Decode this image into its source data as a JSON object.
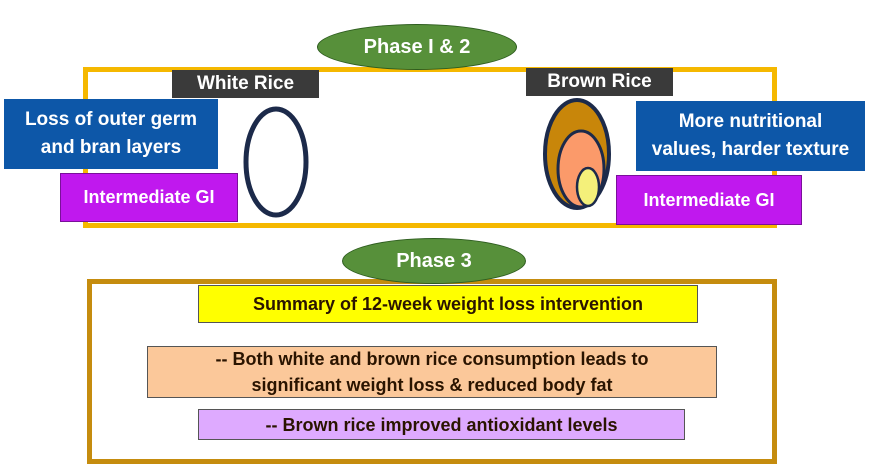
{
  "phase12": {
    "title": "Phase I & 2",
    "white_rice_label": "White Rice",
    "brown_rice_label": "Brown Rice",
    "white_desc": "Loss of outer germ and bran layers",
    "brown_desc": "More nutritional values, harder texture",
    "white_gi": "Intermediate GI",
    "brown_gi": "Intermediate GI"
  },
  "phase3": {
    "title": "Phase 3",
    "summary_title": "Summary of 12-week weight loss intervention",
    "finding1": "-- Both white and brown rice consumption leads to significant weight loss & reduced body fat",
    "finding2": "-- Brown rice improved antioxidant levels"
  },
  "colors": {
    "phase_pill": "#57903a",
    "phase12_frame": "#f5b800",
    "phase3_frame": "#c58c0e",
    "desc_box": "#0d57a8",
    "gi_box": "#c018ee",
    "summary_title_bg": "#ffff00",
    "finding1_bg": "#fbc89a",
    "finding2_bg": "#deaaff",
    "grain_outline": "#1c2a4a",
    "bran_layer": "#c8860a",
    "endosperm": "#fb9a6a",
    "germ": "#f4f07a"
  },
  "icons": [
    "white-rice-grain-icon",
    "brown-rice-grain-icon"
  ]
}
